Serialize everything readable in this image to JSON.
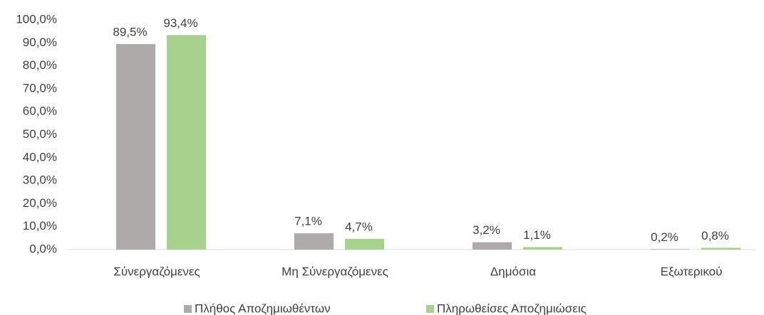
{
  "chart_data": {
    "type": "bar",
    "categories": [
      "Σύνεργαζόμενες",
      "Μη Σύνεργαζόμενες",
      "Δημόσια",
      "Εξωτερικού"
    ],
    "series": [
      {
        "name": "Πλήθος Αποζημιωθέντων",
        "color": "#aeaaaa",
        "values": [
          89.5,
          7.1,
          3.2,
          0.2
        ],
        "value_labels": [
          "89,5%",
          "7,1%",
          "3,2%",
          "0,2%"
        ]
      },
      {
        "name": "Πληρωθείσες Αποζημιώσεις",
        "color": "#a9d18e",
        "values": [
          93.4,
          4.7,
          1.1,
          0.8
        ],
        "value_labels": [
          "93,4%",
          "4,7%",
          "1,1%",
          "0,8%"
        ]
      }
    ],
    "ylim": [
      0,
      100
    ],
    "yticks": [
      {
        "value": 0,
        "label": "0,0%"
      },
      {
        "value": 10,
        "label": "10,0%"
      },
      {
        "value": 20,
        "label": "20,0%"
      },
      {
        "value": 30,
        "label": "30,0%"
      },
      {
        "value": 40,
        "label": "40,0%"
      },
      {
        "value": 50,
        "label": "50,0%"
      },
      {
        "value": 60,
        "label": "60,0%"
      },
      {
        "value": 70,
        "label": "70,0%"
      },
      {
        "value": 80,
        "label": "80,0%"
      },
      {
        "value": 90,
        "label": "90,0%"
      },
      {
        "value": 100,
        "label": "100,0%"
      }
    ],
    "grid": false,
    "legend": "bottom"
  }
}
